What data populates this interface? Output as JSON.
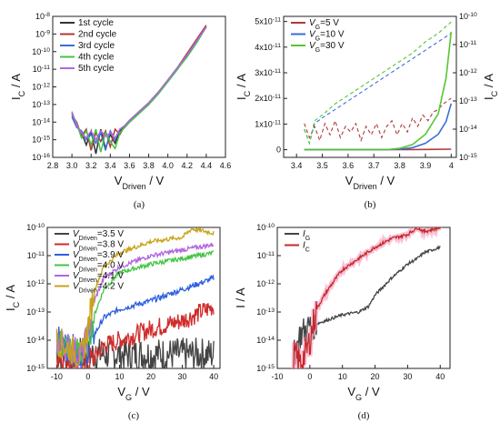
{
  "chart_data": [
    {
      "id": "a",
      "type": "line",
      "caption": "(a)",
      "xlabel_main": "V",
      "xlabel_sub": "Driven",
      "xlabel_unit": " / V",
      "ylabel_main": "I",
      "ylabel_sub": "C",
      "ylabel_unit": " / A",
      "yscale": "log",
      "xlim": [
        2.8,
        4.6
      ],
      "ylim": [
        1e-16,
        1e-08
      ],
      "xticks": [
        "2.8",
        "3.0",
        "3.2",
        "3.4",
        "3.6",
        "3.8",
        "4.0",
        "4.2",
        "4.4",
        "4.6"
      ],
      "yticks": [
        {
          "base": "10",
          "exp": "-8"
        },
        {
          "base": "10",
          "exp": "-9"
        },
        {
          "base": "10",
          "exp": "-10"
        },
        {
          "base": "10",
          "exp": "-11"
        },
        {
          "base": "10",
          "exp": "-12"
        },
        {
          "base": "10",
          "exp": "-13"
        },
        {
          "base": "10",
          "exp": "-14"
        },
        {
          "base": "10",
          "exp": "-15"
        },
        {
          "base": "10",
          "exp": "-16"
        }
      ],
      "legend_position": "top-left",
      "series": [
        {
          "name": "1st cycle",
          "color": "#333333",
          "x": [
            3.0,
            3.05,
            3.1,
            3.15,
            3.2,
            3.25,
            3.3,
            3.35,
            3.4,
            3.45,
            3.5,
            3.55,
            3.6,
            3.7,
            3.8,
            3.9,
            4.0,
            4.1,
            4.2,
            4.3,
            4.4
          ],
          "y": [
            -13.5,
            -14.2,
            -14.6,
            -15.3,
            -14.5,
            -15.8,
            -14.4,
            -15.5,
            -14.7,
            -15.2,
            -14.5,
            -14.3,
            -14.0,
            -13.5,
            -13.0,
            -12.3,
            -11.7,
            -11.0,
            -10.2,
            -9.4,
            -8.6
          ]
        },
        {
          "name": "2nd cycle",
          "color": "#b03a3a",
          "x": [
            3.0,
            3.05,
            3.1,
            3.15,
            3.2,
            3.25,
            3.3,
            3.35,
            3.4,
            3.45,
            3.5,
            3.55,
            3.6,
            3.7,
            3.8,
            3.9,
            4.0,
            4.1,
            4.2,
            4.3,
            4.4
          ],
          "y": [
            -13.6,
            -14.0,
            -14.8,
            -14.4,
            -15.6,
            -14.6,
            -15.1,
            -14.5,
            -15.4,
            -14.4,
            -14.7,
            -14.2,
            -13.9,
            -13.4,
            -12.9,
            -12.3,
            -11.6,
            -10.9,
            -10.1,
            -9.3,
            -8.5
          ]
        },
        {
          "name": "3rd cycle",
          "color": "#3a6fd6",
          "x": [
            3.0,
            3.05,
            3.1,
            3.15,
            3.2,
            3.25,
            3.3,
            3.35,
            3.4,
            3.45,
            3.5,
            3.55,
            3.6,
            3.7,
            3.8,
            3.9,
            4.0,
            4.1,
            4.2,
            4.3,
            4.4
          ],
          "y": [
            -13.7,
            -14.3,
            -14.5,
            -15.0,
            -14.7,
            -15.2,
            -14.6,
            -15.6,
            -14.5,
            -15.0,
            -14.4,
            -14.2,
            -14.0,
            -13.5,
            -13.0,
            -12.4,
            -11.7,
            -11.0,
            -10.2,
            -9.4,
            -8.6
          ]
        },
        {
          "name": "4th cycle",
          "color": "#44c444",
          "x": [
            3.0,
            3.05,
            3.1,
            3.15,
            3.2,
            3.25,
            3.3,
            3.35,
            3.4,
            3.45,
            3.5,
            3.55,
            3.6,
            3.7,
            3.8,
            3.9,
            4.0,
            4.1,
            4.2,
            4.3,
            4.4
          ],
          "y": [
            -13.5,
            -14.1,
            -14.9,
            -14.5,
            -15.3,
            -14.4,
            -15.7,
            -14.6,
            -15.1,
            -15.5,
            -14.6,
            -14.3,
            -14.0,
            -13.5,
            -13.0,
            -12.4,
            -11.7,
            -11.0,
            -10.3,
            -9.5,
            -8.6
          ]
        },
        {
          "name": "5th cycle",
          "color": "#b266e0",
          "x": [
            3.0,
            3.05,
            3.1,
            3.15,
            3.2,
            3.25,
            3.3,
            3.35,
            3.4,
            3.45,
            3.5,
            3.55,
            3.6,
            3.7,
            3.8,
            3.9,
            4.0,
            4.1,
            4.2,
            4.3,
            4.4
          ],
          "y": [
            -13.4,
            -14.2,
            -14.6,
            -14.9,
            -14.5,
            -15.0,
            -14.5,
            -14.8,
            -14.6,
            -14.9,
            -14.4,
            -14.2,
            -13.9,
            -13.4,
            -12.9,
            -12.3,
            -11.6,
            -10.9,
            -10.2,
            -9.4,
            -8.6
          ]
        }
      ]
    },
    {
      "id": "b",
      "type": "line",
      "caption": "(b)",
      "xlabel_main": "V",
      "xlabel_sub": "Driven",
      "xlabel_unit": " / V",
      "ylabel_main": "I",
      "ylabel_sub": "C",
      "ylabel_unit": " / A",
      "xlim": [
        3.35,
        4.02
      ],
      "ylim": [
        -3e-12,
        5.2e-11
      ],
      "xticks": [
        "3.4",
        "3.5",
        "3.6",
        "3.7",
        "3.8",
        "3.9",
        "4"
      ],
      "yticks_left": [
        {
          "value": 0,
          "base": "0",
          "exp": ""
        },
        {
          "value": 1e-11,
          "base": "1x10",
          "exp": "-11"
        },
        {
          "value": 2e-11,
          "base": "2x10",
          "exp": "-11"
        },
        {
          "value": 3e-11,
          "base": "3x10",
          "exp": "-11"
        },
        {
          "value": 4e-11,
          "base": "4x10",
          "exp": "-11"
        },
        {
          "value": 5e-11,
          "base": "5x10",
          "exp": "-11"
        }
      ],
      "right_axis": {
        "scale": "log",
        "ylim": [
          1e-15,
          1e-10
        ],
        "yticks": [
          {
            "base": "10",
            "exp": "-10"
          },
          {
            "base": "10",
            "exp": "-11"
          },
          {
            "base": "10",
            "exp": "-12"
          },
          {
            "base": "10",
            "exp": "-13"
          },
          {
            "base": "10",
            "exp": "-14"
          },
          {
            "base": "10",
            "exp": "-15"
          }
        ],
        "ylabel_main": "I",
        "ylabel_sub": "C",
        "ylabel_unit": " / A"
      },
      "legend_position": "top-left",
      "series": [
        {
          "name_main": "V",
          "name_sub": "G",
          "name_rest": "=5 V",
          "color": "#b03a3a",
          "x": [
            3.43,
            3.5,
            3.6,
            3.7,
            3.8,
            3.9,
            4.0
          ],
          "y": [
            0,
            0,
            0,
            0,
            0,
            1e-13,
            2e-13
          ],
          "log_x": [
            3.43,
            3.45,
            3.47,
            3.49,
            3.51,
            3.53,
            3.55,
            3.57,
            3.59,
            3.61,
            3.63,
            3.65,
            3.67,
            3.69,
            3.71,
            3.73,
            3.75,
            3.77,
            3.79,
            3.81,
            3.83,
            3.85,
            3.87,
            3.89,
            3.91,
            3.93,
            3.95,
            3.97,
            4.0
          ],
          "log_y": [
            -13.8,
            -14.3,
            -13.9,
            -14.4,
            -13.8,
            -14.2,
            -13.7,
            -14.3,
            -13.9,
            -14.1,
            -13.8,
            -14.4,
            -13.9,
            -14.2,
            -13.8,
            -14.3,
            -13.9,
            -13.7,
            -14.2,
            -13.8,
            -14.1,
            -13.6,
            -13.9,
            -13.5,
            -13.7,
            -13.4,
            -13.3,
            -13.1,
            -12.9
          ]
        },
        {
          "name_main": "V",
          "name_sub": "G",
          "name_rest": "=10 V",
          "color": "#3a6fd6",
          "x": [
            3.43,
            3.6,
            3.75,
            3.8,
            3.85,
            3.9,
            3.95,
            3.98,
            4.0
          ],
          "y": [
            0,
            0,
            0,
            2e-13,
            8e-13,
            2.5e-12,
            6e-12,
            1.1e-11,
            1.8e-11
          ],
          "log_x": [
            3.43,
            3.45,
            3.47,
            3.5,
            3.55,
            3.6,
            3.65,
            3.7,
            3.75,
            3.8,
            3.85,
            3.9,
            3.95,
            4.0
          ],
          "log_y": [
            -14.0,
            -14.5,
            -13.8,
            -13.6,
            -13.3,
            -13.0,
            -12.7,
            -12.4,
            -12.1,
            -11.8,
            -11.5,
            -11.2,
            -10.9,
            -10.6
          ]
        },
        {
          "name_main": "V",
          "name_sub": "G",
          "name_rest": "=30 V",
          "color": "#55c634",
          "x": [
            3.43,
            3.6,
            3.75,
            3.8,
            3.85,
            3.9,
            3.95,
            3.98,
            4.0
          ],
          "y": [
            0,
            0,
            0,
            5e-13,
            2e-12,
            6e-12,
            1.4e-11,
            2.8e-11,
            4.6e-11
          ],
          "log_x": [
            3.43,
            3.45,
            3.47,
            3.5,
            3.55,
            3.6,
            3.65,
            3.7,
            3.75,
            3.8,
            3.85,
            3.9,
            3.95,
            4.0
          ],
          "log_y": [
            -14.0,
            -14.5,
            -13.7,
            -13.5,
            -13.1,
            -12.8,
            -12.5,
            -12.2,
            -11.9,
            -11.6,
            -11.3,
            -10.9,
            -10.6,
            -10.2
          ]
        }
      ]
    },
    {
      "id": "c",
      "type": "line",
      "caption": "(c)",
      "xlabel_main": "V",
      "xlabel_sub": "G",
      "xlabel_unit": " / V",
      "ylabel_main": "I",
      "ylabel_sub": "C",
      "ylabel_unit": " / A",
      "yscale": "log",
      "xlim": [
        -13,
        42
      ],
      "ylim": [
        1e-15,
        1e-10
      ],
      "xticks": [
        "-10",
        "0",
        "10",
        "20",
        "30",
        "40"
      ],
      "yticks": [
        {
          "base": "10",
          "exp": "-10"
        },
        {
          "base": "10",
          "exp": "-11"
        },
        {
          "base": "10",
          "exp": "-12"
        },
        {
          "base": "10",
          "exp": "-13"
        },
        {
          "base": "10",
          "exp": "-14"
        },
        {
          "base": "10",
          "exp": "-15"
        }
      ],
      "legend_position": "top-left",
      "series": [
        {
          "name_main": "V",
          "name_sub": "Driven",
          "name_rest": "=3.5 V",
          "color": "#444444",
          "x": [
            -10,
            40
          ],
          "y": [
            -14.5,
            -14.5
          ],
          "noise": 0.6
        },
        {
          "name_main": "V",
          "name_sub": "Driven",
          "name_rest": "=3.8 V",
          "color": "#d02c2c",
          "x": [
            -10,
            0,
            2,
            5,
            10,
            20,
            30,
            40
          ],
          "y": [
            -14.5,
            -14.8,
            -14.6,
            -14.2,
            -14.0,
            -13.6,
            -13.3,
            -12.8
          ],
          "noise": 0.35
        },
        {
          "name_main": "V",
          "name_sub": "Driven",
          "name_rest": "=3.9 V",
          "color": "#2f5fe0",
          "x": [
            -10,
            -2,
            0,
            2,
            5,
            10,
            20,
            30,
            40
          ],
          "y": [
            -14.0,
            -14.5,
            -14.3,
            -13.8,
            -13.2,
            -12.9,
            -12.6,
            -12.2,
            -11.8
          ],
          "noise": 0.1
        },
        {
          "name_main": "V",
          "name_sub": "Driven",
          "name_rest": "=4.0 V",
          "color": "#44c444",
          "x": [
            -10,
            -2,
            0,
            2,
            5,
            10,
            20,
            30,
            40
          ],
          "y": [
            -14.0,
            -14.5,
            -14.0,
            -13.1,
            -12.2,
            -11.6,
            -11.3,
            -11.1,
            -10.9
          ],
          "noise": 0.08
        },
        {
          "name_main": "V",
          "name_sub": "Driven",
          "name_rest": "=4.1 V",
          "color": "#b266e0",
          "x": [
            -10,
            -2,
            0,
            2,
            5,
            10,
            20,
            30,
            40
          ],
          "y": [
            -14.0,
            -14.5,
            -13.8,
            -12.6,
            -11.8,
            -11.4,
            -11.0,
            -10.8,
            -10.6
          ],
          "noise": 0.08
        },
        {
          "name_main": "V",
          "name_sub": "Driven",
          "name_rest": "=4.2 V",
          "color": "#c8a418",
          "x": [
            -10,
            -2,
            0,
            2,
            5,
            10,
            20,
            30,
            33,
            40
          ],
          "y": [
            -14.0,
            -14.6,
            -13.5,
            -12.2,
            -11.4,
            -10.9,
            -10.5,
            -10.35,
            -10.05,
            -10.2
          ],
          "noise": 0.08
        }
      ]
    },
    {
      "id": "d",
      "type": "line",
      "caption": "(d)",
      "xlabel_main": "V",
      "xlabel_sub": "G",
      "xlabel_unit": " / V",
      "ylabel_main": "I",
      "ylabel_sub": "",
      "ylabel_unit": " / A",
      "yscale": "log",
      "xlim": [
        -10,
        43
      ],
      "ylim": [
        1e-15,
        1e-10
      ],
      "xticks": [
        "-10",
        "0",
        "10",
        "20",
        "30",
        "40"
      ],
      "yticks": [
        {
          "base": "10",
          "exp": "-10"
        },
        {
          "base": "10",
          "exp": "-11"
        },
        {
          "base": "10",
          "exp": "-12"
        },
        {
          "base": "10",
          "exp": "-13"
        },
        {
          "base": "10",
          "exp": "-14"
        },
        {
          "base": "10",
          "exp": "-15"
        }
      ],
      "legend_position": "top-left",
      "series": [
        {
          "name_main": "I",
          "name_sub": "G",
          "name_rest": "",
          "color": "#444444",
          "x": [
            -5,
            -3,
            0,
            5,
            10,
            15,
            18,
            20,
            25,
            30,
            33,
            35,
            40
          ],
          "y": [
            -14.6,
            -13.8,
            -13.5,
            -13.3,
            -13.1,
            -13.0,
            -12.8,
            -12.4,
            -11.8,
            -11.3,
            -11.1,
            -10.9,
            -10.7
          ],
          "noise": 0.05
        },
        {
          "name_main": "I",
          "name_sub": "C",
          "name_rest": "",
          "color": "#c62828",
          "x": [
            -5,
            -3,
            -1,
            0,
            2,
            5,
            8,
            10,
            15,
            20,
            25,
            30,
            33,
            35,
            40
          ],
          "y": [
            -14.5,
            -14.8,
            -14.4,
            -14.0,
            -12.9,
            -12.3,
            -11.8,
            -11.5,
            -11.1,
            -10.7,
            -10.4,
            -10.25,
            -10.0,
            -10.15,
            -10.0
          ],
          "noise": 0.06,
          "glow": "#f5a9c9"
        }
      ]
    }
  ]
}
